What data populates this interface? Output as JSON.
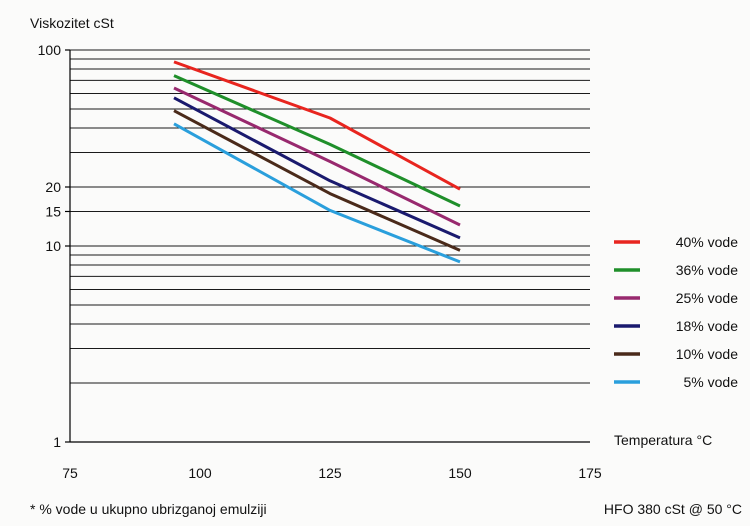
{
  "chart_data": {
    "type": "line",
    "ylabel": "Viskozitet cSt",
    "xlabel": "Temperatura °C",
    "y_scale": "log",
    "xlim": [
      75,
      175
    ],
    "ylim": [
      1,
      100
    ],
    "x_ticks": [
      "75",
      "100",
      "125",
      "150",
      "175"
    ],
    "y_ticks": [
      "100",
      "20",
      "15",
      "10",
      "1"
    ],
    "y_tick_values": [
      100,
      20,
      15,
      10,
      1
    ],
    "x_tick_values": [
      75,
      100,
      125,
      150,
      175
    ],
    "grid": "horizontal",
    "legend_position": "right",
    "series": [
      {
        "name": "40% vode",
        "color": "#e8251f",
        "x": [
          95,
          125,
          150
        ],
        "y": [
          87,
          45,
          19.5
        ]
      },
      {
        "name": "36% vode",
        "color": "#1f8f2a",
        "x": [
          95,
          125,
          150
        ],
        "y": [
          74,
          33,
          16
        ]
      },
      {
        "name": "25% vode",
        "color": "#98296e",
        "x": [
          95,
          125,
          150
        ],
        "y": [
          64,
          27,
          12.8
        ]
      },
      {
        "name": "18% vode",
        "color": "#1a1a6e",
        "x": [
          95,
          125,
          150
        ],
        "y": [
          57,
          21.5,
          11
        ]
      },
      {
        "name": "10% vode",
        "color": "#4a2a1a",
        "x": [
          95,
          125,
          150
        ],
        "y": [
          49,
          18.5,
          9.5
        ]
      },
      {
        "name": "5% vode",
        "color": "#2a9fdc",
        "x": [
          95,
          125,
          150
        ],
        "y": [
          42,
          15.2,
          8.3
        ]
      }
    ],
    "footnote": "* % vode u ukupno ubrizganoj emulziji",
    "note": "HFO 380 cSt @ 50 °C"
  }
}
